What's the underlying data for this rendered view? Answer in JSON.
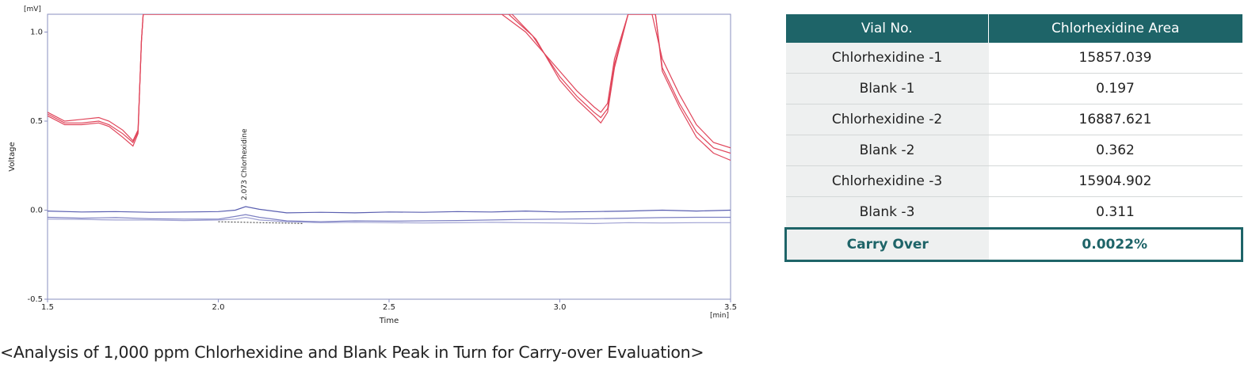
{
  "chart_data": {
    "type": "line",
    "title": "",
    "xlabel": "Time",
    "ylabel": "Voltage",
    "x_unit": "[min]",
    "y_unit": "[mV]",
    "xlim": [
      1.5,
      3.5
    ],
    "ylim": [
      -0.5,
      1.1
    ],
    "x_ticks": [
      "1.5",
      "2.0",
      "2.5",
      "3.0",
      "3.5"
    ],
    "y_ticks": [
      "-0.5",
      "0.0",
      "0.5",
      "1.0"
    ],
    "grid": false,
    "peak_annotation": {
      "label": "2.073 Chlorhexidine",
      "x": 2.073,
      "y": 0.02
    },
    "baseline_segment": {
      "x": [
        2.0,
        2.25
      ],
      "y": [
        -0.065,
        -0.075
      ]
    },
    "series": [
      {
        "kind": "sample",
        "color": "#e0455a",
        "x": [
          1.5,
          1.55,
          1.6,
          1.65,
          1.68,
          1.72,
          1.75,
          1.765,
          1.77,
          1.775,
          1.78,
          2.83,
          2.9,
          3.0,
          3.05,
          3.1,
          3.12,
          3.14,
          3.16,
          3.2,
          3.25,
          3.27,
          3.3,
          3.35,
          3.4,
          3.45,
          3.5
        ],
        "y": [
          0.55,
          0.5,
          0.51,
          0.52,
          0.5,
          0.45,
          0.39,
          0.45,
          0.7,
          0.95,
          1.1,
          1.1,
          1.0,
          0.78,
          0.67,
          0.58,
          0.55,
          0.6,
          0.85,
          1.1,
          1.1,
          1.1,
          0.85,
          0.65,
          0.48,
          0.38,
          0.35
        ]
      },
      {
        "kind": "sample",
        "color": "#e0455a",
        "x": [
          1.5,
          1.55,
          1.6,
          1.65,
          1.68,
          1.72,
          1.75,
          1.765,
          1.77,
          1.775,
          1.78,
          2.85,
          2.92,
          3.0,
          3.05,
          3.1,
          3.12,
          3.14,
          3.16,
          3.2,
          3.25,
          3.28,
          3.3,
          3.35,
          3.4,
          3.45,
          3.5
        ],
        "y": [
          0.54,
          0.49,
          0.49,
          0.5,
          0.48,
          0.43,
          0.38,
          0.44,
          0.7,
          0.95,
          1.1,
          1.1,
          0.98,
          0.75,
          0.64,
          0.55,
          0.52,
          0.57,
          0.82,
          1.1,
          1.1,
          1.1,
          0.8,
          0.6,
          0.44,
          0.35,
          0.32
        ]
      },
      {
        "kind": "sample",
        "color": "#e0455a",
        "x": [
          1.5,
          1.55,
          1.6,
          1.65,
          1.68,
          1.72,
          1.75,
          1.765,
          1.77,
          1.775,
          1.78,
          2.86,
          2.93,
          3.0,
          3.05,
          3.1,
          3.12,
          3.14,
          3.16,
          3.2,
          3.26,
          3.28,
          3.3,
          3.35,
          3.4,
          3.45,
          3.5
        ],
        "y": [
          0.53,
          0.48,
          0.48,
          0.49,
          0.47,
          0.41,
          0.36,
          0.43,
          0.7,
          0.95,
          1.1,
          1.1,
          0.96,
          0.73,
          0.62,
          0.53,
          0.49,
          0.55,
          0.8,
          1.1,
          1.1,
          1.1,
          0.78,
          0.58,
          0.41,
          0.32,
          0.28
        ]
      },
      {
        "kind": "blank",
        "color": "#5a5fb0",
        "x": [
          1.5,
          1.6,
          1.7,
          1.8,
          1.9,
          2.0,
          2.05,
          2.08,
          2.12,
          2.2,
          2.3,
          2.4,
          2.5,
          2.6,
          2.7,
          2.8,
          2.9,
          3.0,
          3.1,
          3.2,
          3.3,
          3.4,
          3.5
        ],
        "y": [
          -0.005,
          -0.01,
          -0.008,
          -0.012,
          -0.01,
          -0.008,
          0.0,
          0.02,
          0.005,
          -0.015,
          -0.012,
          -0.015,
          -0.01,
          -0.012,
          -0.008,
          -0.01,
          -0.005,
          -0.01,
          -0.008,
          -0.005,
          0.0,
          -0.005,
          0.0
        ]
      },
      {
        "kind": "blank",
        "color": "#7d80c2",
        "x": [
          1.5,
          1.6,
          1.7,
          1.8,
          1.9,
          2.0,
          2.05,
          2.08,
          2.12,
          2.2,
          2.3,
          2.4,
          2.5,
          2.6,
          2.7,
          2.8,
          2.9,
          3.0,
          3.1,
          3.2,
          3.3,
          3.4,
          3.5
        ],
        "y": [
          -0.04,
          -0.045,
          -0.042,
          -0.048,
          -0.05,
          -0.05,
          -0.035,
          -0.025,
          -0.04,
          -0.06,
          -0.065,
          -0.06,
          -0.062,
          -0.06,
          -0.058,
          -0.055,
          -0.052,
          -0.05,
          -0.048,
          -0.045,
          -0.042,
          -0.04,
          -0.04
        ]
      },
      {
        "kind": "blank",
        "color": "#9ea0d2",
        "x": [
          1.5,
          1.6,
          1.7,
          1.8,
          1.9,
          2.0,
          2.05,
          2.08,
          2.12,
          2.2,
          2.3,
          2.4,
          2.5,
          2.6,
          2.7,
          2.8,
          2.9,
          3.0,
          3.1,
          3.2,
          3.3,
          3.4,
          3.5
        ],
        "y": [
          -0.05,
          -0.052,
          -0.055,
          -0.055,
          -0.058,
          -0.055,
          -0.05,
          -0.04,
          -0.055,
          -0.065,
          -0.07,
          -0.068,
          -0.07,
          -0.072,
          -0.07,
          -0.068,
          -0.07,
          -0.072,
          -0.075,
          -0.07,
          -0.072,
          -0.07,
          -0.07
        ]
      }
    ]
  },
  "table": {
    "headers": [
      "Vial No.",
      "Chlorhexidine Area"
    ],
    "rows": [
      {
        "vial": "Chlorhexidine -1",
        "area": "15857.039"
      },
      {
        "vial": "Blank -1",
        "area": "0.197"
      },
      {
        "vial": "Chlorhexidine -2",
        "area": "16887.621"
      },
      {
        "vial": "Blank -2",
        "area": "0.362"
      },
      {
        "vial": "Chlorhexidine -3",
        "area": "15904.902"
      },
      {
        "vial": "Blank -3",
        "area": "0.311"
      }
    ],
    "summary": {
      "label": "Carry Over",
      "value": "0.0022%"
    }
  },
  "caption": "<Analysis of 1,000 ppm Chlorhexidine and Blank Peak in Turn for Carry-over Evaluation>",
  "colors": {
    "accent": "#1e6468",
    "sample_trace": "#e0455a",
    "blank_trace": "#5a5fb0"
  }
}
